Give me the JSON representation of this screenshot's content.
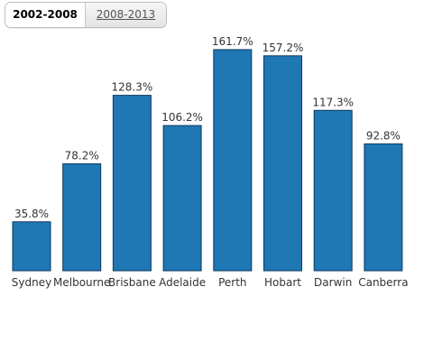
{
  "tabs": [
    {
      "label": "2002-2008",
      "active": true
    },
    {
      "label": "2008-2013",
      "active": false
    }
  ],
  "colors": {
    "bar_fill": "#1f77b4",
    "bar_stroke": "#0d3a5c"
  },
  "chart_data": {
    "type": "bar",
    "categories": [
      "Sydney",
      "Melbourne",
      "Brisbane",
      "Adelaide",
      "Perth",
      "Hobart",
      "Darwin",
      "Canberra"
    ],
    "values": [
      35.8,
      78.2,
      128.3,
      106.2,
      161.7,
      157.2,
      117.3,
      92.8
    ],
    "value_labels": [
      "35.8%",
      "78.2%",
      "128.3%",
      "106.2%",
      "161.7%",
      "157.2%",
      "117.3%",
      "92.8%"
    ],
    "ylim": [
      0,
      161.7
    ],
    "grid": false,
    "legend": "none"
  }
}
